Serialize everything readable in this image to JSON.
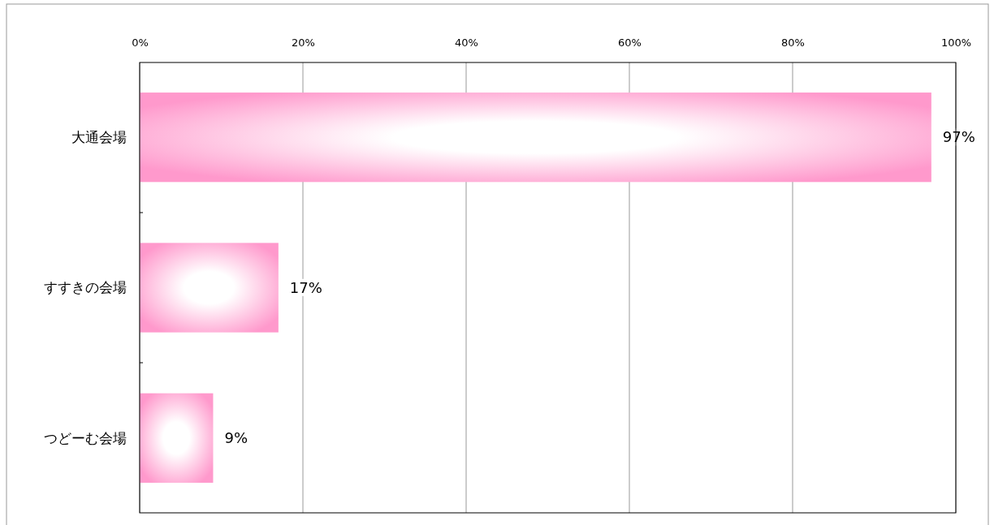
{
  "chart_data": {
    "type": "bar",
    "orientation": "horizontal",
    "categories": [
      "大通会場",
      "すすきの会場",
      "つどーむ会場"
    ],
    "values": [
      97,
      17,
      9
    ],
    "color": "#ff99cc",
    "value_labels": [
      "97%",
      "17%",
      "9%"
    ],
    "xlim": [
      0,
      100
    ],
    "xticks": [
      {
        "value": 0,
        "label": "0%"
      },
      {
        "value": 20,
        "label": "20%"
      },
      {
        "value": 40,
        "label": "40%"
      },
      {
        "value": 60,
        "label": "60%"
      },
      {
        "value": 80,
        "label": "80%"
      },
      {
        "value": 100,
        "label": "100%"
      }
    ],
    "grid": "x"
  }
}
